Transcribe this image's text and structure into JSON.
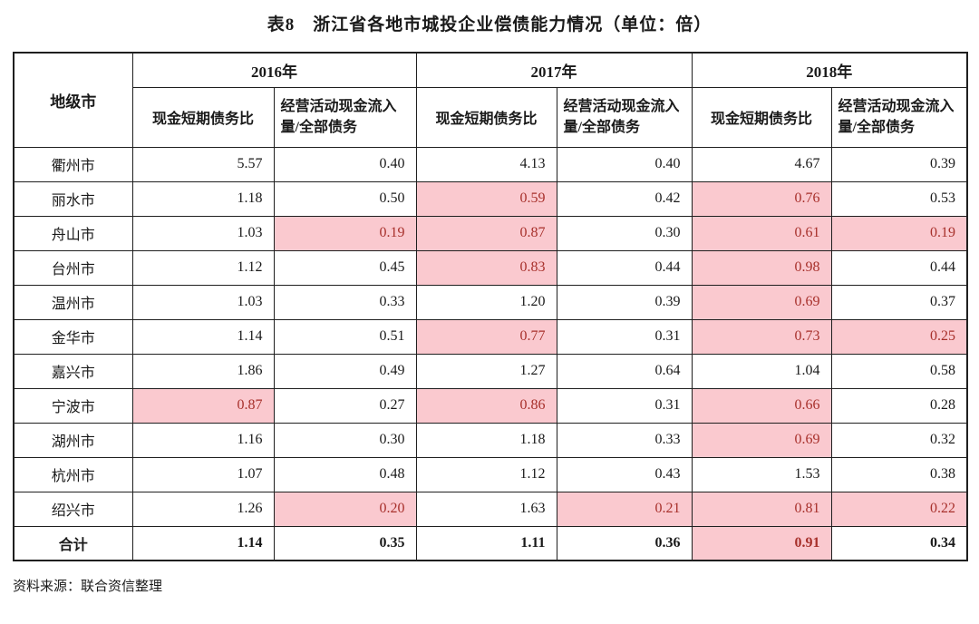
{
  "page": {
    "title": "表8　浙江省各地市城投企业偿债能力情况（单位：倍）",
    "source_note": "资料来源：联合资信整理"
  },
  "table": {
    "corner_header": "地级市",
    "year_groups": [
      "2016年",
      "2017年",
      "2018年"
    ],
    "metric_headers": [
      "现金短期债务比",
      "经营活动现金流入量/全部债务"
    ],
    "rows": [
      {
        "city": "衢州市",
        "values": [
          "5.57",
          "0.40",
          "4.13",
          "0.40",
          "4.67",
          "0.39"
        ],
        "highlights": [
          0,
          0,
          0,
          0,
          0,
          0
        ]
      },
      {
        "city": "丽水市",
        "values": [
          "1.18",
          "0.50",
          "0.59",
          "0.42",
          "0.76",
          "0.53"
        ],
        "highlights": [
          0,
          0,
          1,
          0,
          1,
          0
        ]
      },
      {
        "city": "舟山市",
        "values": [
          "1.03",
          "0.19",
          "0.87",
          "0.30",
          "0.61",
          "0.19"
        ],
        "highlights": [
          0,
          1,
          1,
          0,
          1,
          1
        ]
      },
      {
        "city": "台州市",
        "values": [
          "1.12",
          "0.45",
          "0.83",
          "0.44",
          "0.98",
          "0.44"
        ],
        "highlights": [
          0,
          0,
          1,
          0,
          1,
          0
        ]
      },
      {
        "city": "温州市",
        "values": [
          "1.03",
          "0.33",
          "1.20",
          "0.39",
          "0.69",
          "0.37"
        ],
        "highlights": [
          0,
          0,
          0,
          0,
          1,
          0
        ]
      },
      {
        "city": "金华市",
        "values": [
          "1.14",
          "0.51",
          "0.77",
          "0.31",
          "0.73",
          "0.25"
        ],
        "highlights": [
          0,
          0,
          1,
          0,
          1,
          1
        ]
      },
      {
        "city": "嘉兴市",
        "values": [
          "1.86",
          "0.49",
          "1.27",
          "0.64",
          "1.04",
          "0.58"
        ],
        "highlights": [
          0,
          0,
          0,
          0,
          0,
          0
        ]
      },
      {
        "city": "宁波市",
        "values": [
          "0.87",
          "0.27",
          "0.86",
          "0.31",
          "0.66",
          "0.28"
        ],
        "highlights": [
          1,
          0,
          1,
          0,
          1,
          0
        ]
      },
      {
        "city": "湖州市",
        "values": [
          "1.16",
          "0.30",
          "1.18",
          "0.33",
          "0.69",
          "0.32"
        ],
        "highlights": [
          0,
          0,
          0,
          0,
          1,
          0
        ]
      },
      {
        "city": "杭州市",
        "values": [
          "1.07",
          "0.48",
          "1.12",
          "0.43",
          "1.53",
          "0.38"
        ],
        "highlights": [
          0,
          0,
          0,
          0,
          0,
          0
        ]
      },
      {
        "city": "绍兴市",
        "values": [
          "1.26",
          "0.20",
          "1.63",
          "0.21",
          "0.81",
          "0.22"
        ],
        "highlights": [
          0,
          1,
          0,
          1,
          1,
          1
        ]
      },
      {
        "city": "合计",
        "values": [
          "1.14",
          "0.35",
          "1.11",
          "0.36",
          "0.91",
          "0.34"
        ],
        "highlights": [
          0,
          0,
          0,
          0,
          1,
          0
        ]
      }
    ]
  },
  "colors": {
    "highlight_bg": "#fac9cf",
    "highlight_text": "#a7302b",
    "border": "#1f1f1f"
  }
}
